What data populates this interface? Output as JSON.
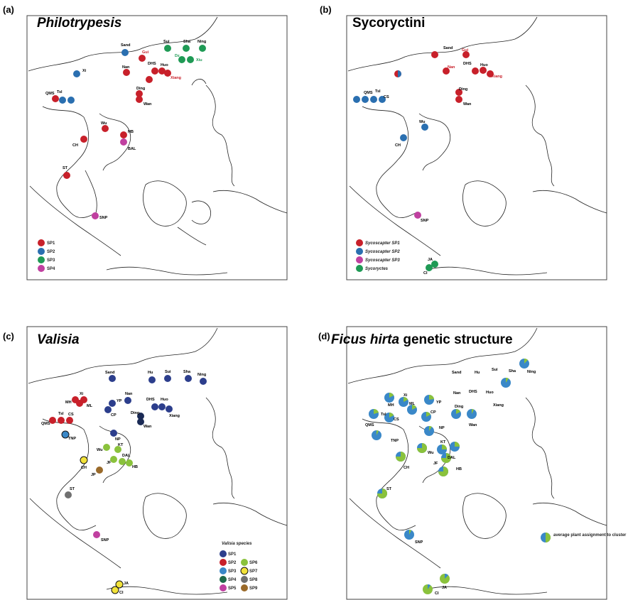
{
  "panels": [
    {
      "letter": "(a)",
      "title": "Philotrypesis",
      "italic": true
    },
    {
      "letter": "(b)",
      "title": "Sycoryctini",
      "italic": false
    },
    {
      "letter": "(c)",
      "title": "Valisia",
      "italic": true
    },
    {
      "letter": "(d)",
      "title": "Ficus hirta genetic structure",
      "italic_part": "Ficus hirta",
      "rest": " genetic structure"
    }
  ],
  "colors": {
    "SP1_red": "#c8202a",
    "SP2_blue": "#2a6fb0",
    "SP3_green": "#1f9a55",
    "SP4_magenta": "#c040a0",
    "navy": "#2c3e8c",
    "teal": "#2e9a8a",
    "lime": "#8ac23c",
    "yellow": "#f2e23a",
    "brown": "#9a6a2a",
    "gray": "#707070",
    "lightblue": "#3a88c8"
  },
  "panel_a": {
    "sites": [
      {
        "name": "Sand",
        "c": "SP2_blue"
      },
      {
        "name": "Gui",
        "c": "SP1_red",
        "red": true
      },
      {
        "name": "Sui",
        "c": "SP3_green"
      },
      {
        "name": "Sha",
        "c": "SP3_green"
      },
      {
        "name": "Ning",
        "c": "SP3_green"
      },
      {
        "name": "Xi",
        "c": "SP2_blue"
      },
      {
        "name": "Nan",
        "c": "SP1_red"
      },
      {
        "name": "DHS",
        "c": "SP1_red"
      },
      {
        "name": "Huo",
        "c": "SP1_red"
      },
      {
        "name": "Dz",
        "c": "SP3_green",
        "green": true
      },
      {
        "name": "Xiu",
        "c": "SP3_green",
        "green": true
      },
      {
        "name": "Xiang",
        "c": "SP1_red",
        "red": true
      },
      {
        "name": "QMS",
        "c": "SP2_blue"
      },
      {
        "name": "Tsl",
        "c": "SP2_blue"
      },
      {
        "name": "Ding",
        "c": "SP1_red"
      },
      {
        "name": "Wan",
        "c": "SP1_red"
      },
      {
        "name": "Wu",
        "c": "SP1_red"
      },
      {
        "name": "CH",
        "c": "SP1_red"
      },
      {
        "name": "HB",
        "c": "SP1_red"
      },
      {
        "name": "BAL",
        "c": "SP4_magenta"
      },
      {
        "name": "ST",
        "c": "SP1_red"
      },
      {
        "name": "SNP",
        "c": "SP4_magenta"
      }
    ],
    "legend": [
      "SP1",
      "SP2",
      "SP3",
      "SP4"
    ]
  },
  "panel_b": {
    "sites": [
      {
        "name": "Sand"
      },
      {
        "name": "Gui",
        "red": true
      },
      {
        "name": "Nan",
        "red": true
      },
      {
        "name": "DHS"
      },
      {
        "name": "Huo"
      },
      {
        "name": "Xiang",
        "red": true
      },
      {
        "name": "QMS"
      },
      {
        "name": "Tsl"
      },
      {
        "name": "CS"
      },
      {
        "name": "Ding"
      },
      {
        "name": "Wan"
      },
      {
        "name": "Wu"
      },
      {
        "name": "CH"
      },
      {
        "name": "SNP"
      },
      {
        "name": "JA"
      },
      {
        "name": "CI"
      }
    ],
    "legend": [
      "Sycoscapter SP1",
      "Sycoscapter SP2",
      "Sycoscapter SP3",
      "Sycoryctes"
    ]
  },
  "panel_c": {
    "sites": [
      {
        "name": "Sand"
      },
      {
        "name": "Hu"
      },
      {
        "name": "Sui"
      },
      {
        "name": "Sha"
      },
      {
        "name": "Ning"
      },
      {
        "name": "Nan"
      },
      {
        "name": "DHS"
      },
      {
        "name": "Huo"
      },
      {
        "name": "Xiang"
      },
      {
        "name": "Xi"
      },
      {
        "name": "MH"
      },
      {
        "name": "ML"
      },
      {
        "name": "YP"
      },
      {
        "name": "CP"
      },
      {
        "name": "Ding"
      },
      {
        "name": "Wan"
      },
      {
        "name": "Tsl"
      },
      {
        "name": "CS"
      },
      {
        "name": "QMS"
      },
      {
        "name": "TNP"
      },
      {
        "name": "NP"
      },
      {
        "name": "Wu"
      },
      {
        "name": "KT"
      },
      {
        "name": "JF"
      },
      {
        "name": "DAL"
      },
      {
        "name": "HB"
      },
      {
        "name": "CH"
      },
      {
        "name": "JP"
      },
      {
        "name": "ST"
      },
      {
        "name": "SNP"
      },
      {
        "name": "JA"
      },
      {
        "name": "CI"
      }
    ],
    "legend_title": "Valisia species",
    "legend": [
      "SP1",
      "SP2",
      "SP3",
      "SP4",
      "SP5",
      "SP6",
      "SP7",
      "SP8",
      "SP9"
    ]
  },
  "panel_d": {
    "sites": [
      {
        "name": "Sand"
      },
      {
        "name": "Hu"
      },
      {
        "name": "Sui"
      },
      {
        "name": "Sha"
      },
      {
        "name": "Ning"
      },
      {
        "name": "Nan"
      },
      {
        "name": "DHS"
      },
      {
        "name": "Huo"
      },
      {
        "name": "Xiang"
      },
      {
        "name": "Xi"
      },
      {
        "name": "MH"
      },
      {
        "name": "ML"
      },
      {
        "name": "YP"
      },
      {
        "name": "CP"
      },
      {
        "name": "Ding"
      },
      {
        "name": "Wan"
      },
      {
        "name": "Tsl"
      },
      {
        "name": "CS"
      },
      {
        "name": "QMS"
      },
      {
        "name": "NP"
      },
      {
        "name": "TNP"
      },
      {
        "name": "Wu"
      },
      {
        "name": "KT"
      },
      {
        "name": "JF"
      },
      {
        "name": "DAL"
      },
      {
        "name": "CH"
      },
      {
        "name": "HB"
      },
      {
        "name": "ST"
      },
      {
        "name": "SNP"
      },
      {
        "name": "JA"
      },
      {
        "name": "CI"
      }
    ],
    "legend": "average plant assignment to cluster"
  }
}
